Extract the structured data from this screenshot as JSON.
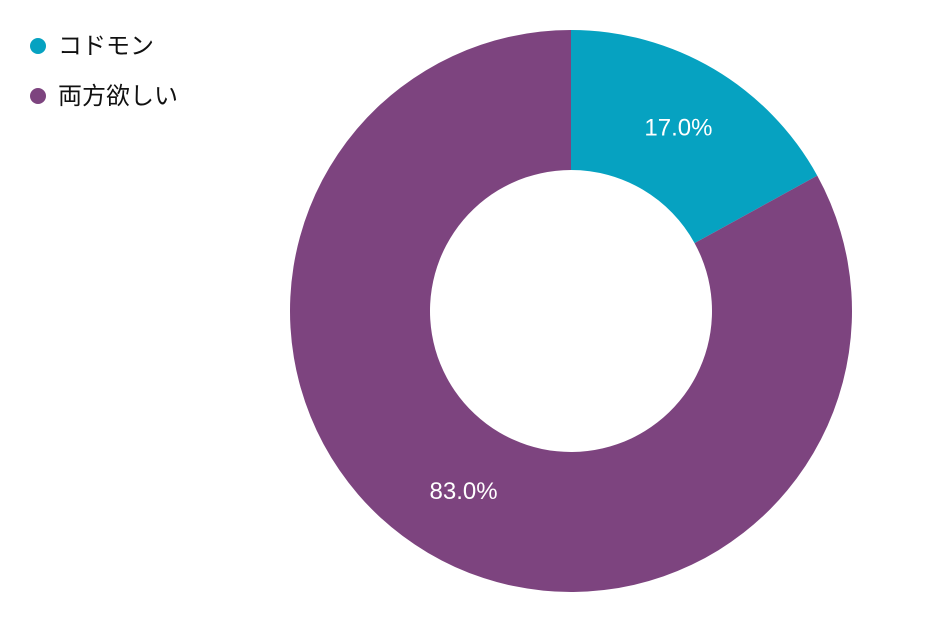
{
  "chart_data": {
    "type": "pie",
    "variant": "donut",
    "categories": [
      "コドモン",
      "両方欲しい"
    ],
    "values": [
      17.0,
      83.0
    ],
    "value_labels": [
      "17.0%",
      "83.0%"
    ],
    "colors": [
      "#06a2c1",
      "#7d447f"
    ],
    "legend_position": "top-left"
  }
}
